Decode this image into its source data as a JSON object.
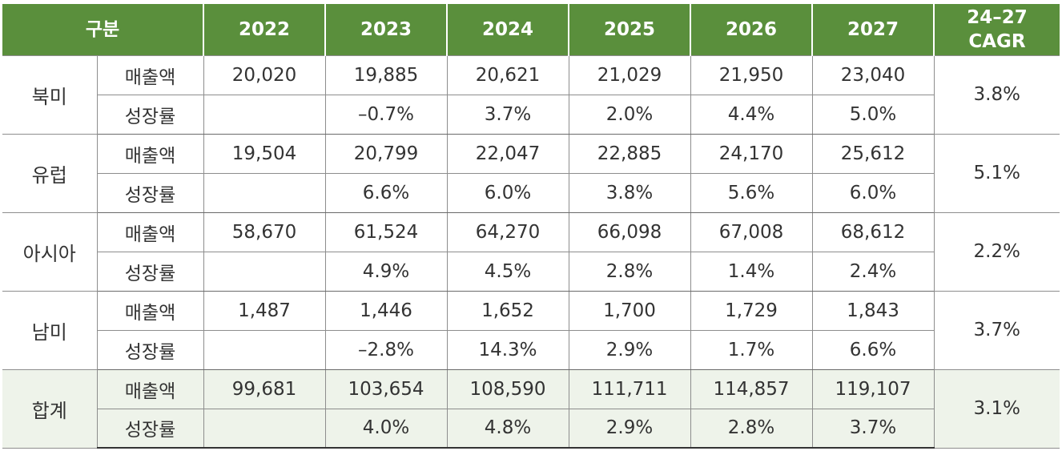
{
  "header": {
    "category": "구분",
    "years": [
      "2022",
      "2023",
      "2024",
      "2025",
      "2026",
      "2027"
    ],
    "cagr_line1": "24–27",
    "cagr_line2": "CAGR"
  },
  "metric_labels": {
    "sales": "매출액",
    "growth": "성장률"
  },
  "regions": [
    {
      "name": "북미",
      "sales": [
        "20,020",
        "19,885",
        "20,621",
        "21,029",
        "21,950",
        "23,040"
      ],
      "growth": [
        "",
        "–0.7%",
        "3.7%",
        "2.0%",
        "4.4%",
        "5.0%"
      ],
      "cagr": "3.8%"
    },
    {
      "name": "유럽",
      "sales": [
        "19,504",
        "20,799",
        "22,047",
        "22,885",
        "24,170",
        "25,612"
      ],
      "growth": [
        "",
        "6.6%",
        "6.0%",
        "3.8%",
        "5.6%",
        "6.0%"
      ],
      "cagr": "5.1%"
    },
    {
      "name": "아시아",
      "sales": [
        "58,670",
        "61,524",
        "64,270",
        "66,098",
        "67,008",
        "68,612"
      ],
      "growth": [
        "",
        "4.9%",
        "4.5%",
        "2.8%",
        "1.4%",
        "2.4%"
      ],
      "cagr": "2.2%"
    },
    {
      "name": "남미",
      "sales": [
        "1,487",
        "1,446",
        "1,652",
        "1,700",
        "1,729",
        "1,843"
      ],
      "growth": [
        "",
        "–2.8%",
        "14.3%",
        "2.9%",
        "1.7%",
        "6.6%"
      ],
      "cagr": "3.7%"
    },
    {
      "name": "합계",
      "sales": [
        "99,681",
        "103,654",
        "108,590",
        "111,711",
        "114,857",
        "119,107"
      ],
      "growth": [
        "",
        "4.0%",
        "4.8%",
        "2.9%",
        "2.8%",
        "3.7%"
      ],
      "cagr": "3.1%"
    }
  ],
  "colors": {
    "header_bg": "#5a8f3c",
    "total_row_bg": "#eef3ea"
  }
}
